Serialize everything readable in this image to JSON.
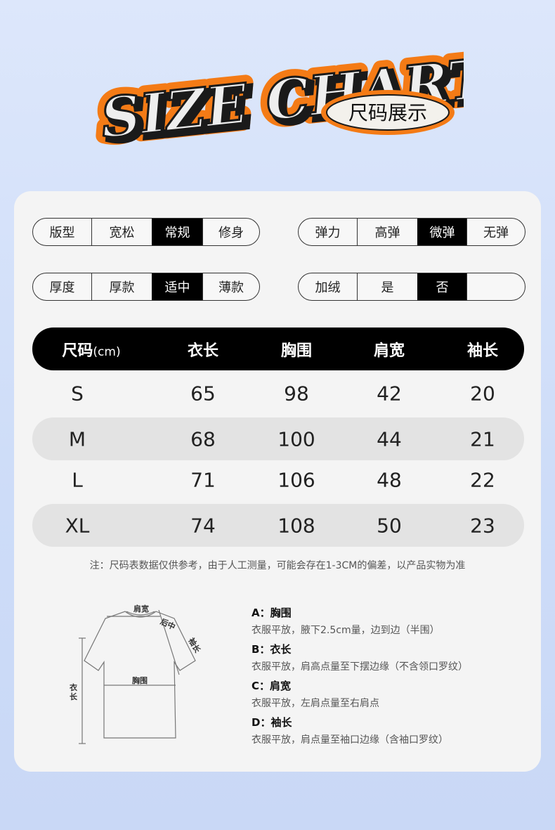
{
  "header": {
    "title": "SIZE CHART",
    "subtitle": "尺码展示",
    "colors": {
      "outline": "#f47b16",
      "fill": "#eeeeee",
      "shadow": "#1a1a1a"
    }
  },
  "attributes": [
    {
      "label": "版型",
      "options": [
        "宽松",
        "常规",
        "修身"
      ],
      "selected": "常规"
    },
    {
      "label": "弹力",
      "options": [
        "高弹",
        "微弹",
        "无弹"
      ],
      "selected": "微弹"
    },
    {
      "label": "厚度",
      "options": [
        "厚款",
        "适中",
        "薄款"
      ],
      "selected": "适中"
    },
    {
      "label": "加绒",
      "options": [
        "是",
        "否",
        ""
      ],
      "selected": "否"
    }
  ],
  "table": {
    "headers": [
      "尺码",
      "衣长",
      "胸围",
      "肩宽",
      "袖长"
    ],
    "unit": "(cm)",
    "rows": [
      [
        "S",
        "65",
        "98",
        "42",
        "20"
      ],
      [
        "M",
        "68",
        "100",
        "44",
        "21"
      ],
      [
        "L",
        "71",
        "106",
        "48",
        "22"
      ],
      [
        "XL",
        "74",
        "108",
        "50",
        "23"
      ]
    ]
  },
  "note": "注：尺码表数据仅供参考，由于人工测量，可能会存在1-3CM的偏差，以产品实物为准",
  "diagram": {
    "labels": {
      "shoulder": "肩宽",
      "back": "后中",
      "sleeve": "袖长",
      "chest": "胸围",
      "length": "衣长"
    }
  },
  "measurements": [
    {
      "title": "A：胸围",
      "text": "衣服平放，腋下2.5cm量，边到边（半围）"
    },
    {
      "title": "B：衣长",
      "text": "衣服平放，肩高点量至下摆边缘（不含领口罗纹）"
    },
    {
      "title": "C：肩宽",
      "text": "衣服平放，左肩点量至右肩点"
    },
    {
      "title": "D：袖长",
      "text": "衣服平放，肩点量至袖口边缘（含袖口罗纹）"
    }
  ]
}
